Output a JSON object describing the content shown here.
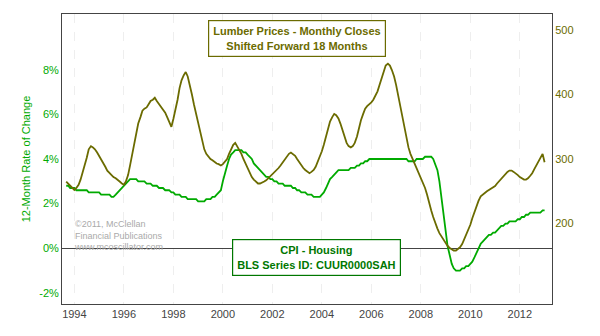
{
  "chart_data": {
    "type": "line",
    "title": "Lumber Prices - Monthly Closes",
    "subtitle": "Shifted Forward 18 Months",
    "ylabel": "12-Month Rate of Change",
    "x": [
      1993.67,
      1993.75,
      1993.83,
      1993.92,
      1994.0,
      1994.08,
      1994.17,
      1994.25,
      1994.33,
      1994.42,
      1994.5,
      1994.58,
      1994.67,
      1994.75,
      1994.83,
      1994.92,
      1995.0,
      1995.08,
      1995.17,
      1995.25,
      1995.33,
      1995.42,
      1995.5,
      1995.58,
      1995.67,
      1995.75,
      1995.83,
      1995.92,
      1996.0,
      1996.08,
      1996.17,
      1996.25,
      1996.33,
      1996.42,
      1996.5,
      1996.58,
      1996.67,
      1996.75,
      1996.83,
      1996.92,
      1997.0,
      1997.08,
      1997.17,
      1997.25,
      1997.33,
      1997.42,
      1997.5,
      1997.58,
      1997.67,
      1997.75,
      1997.83,
      1997.92,
      1998.0,
      1998.08,
      1998.17,
      1998.25,
      1998.33,
      1998.42,
      1998.5,
      1998.58,
      1998.67,
      1998.75,
      1998.83,
      1998.92,
      1999.0,
      1999.08,
      1999.17,
      1999.25,
      1999.33,
      1999.42,
      1999.5,
      1999.58,
      1999.67,
      1999.75,
      1999.83,
      1999.92,
      2000.0,
      2000.08,
      2000.17,
      2000.25,
      2000.33,
      2000.42,
      2000.5,
      2000.58,
      2000.67,
      2000.75,
      2000.83,
      2000.92,
      2001.0,
      2001.08,
      2001.17,
      2001.25,
      2001.33,
      2001.42,
      2001.5,
      2001.58,
      2001.67,
      2001.75,
      2001.83,
      2001.92,
      2002.0,
      2002.08,
      2002.17,
      2002.25,
      2002.33,
      2002.42,
      2002.5,
      2002.58,
      2002.67,
      2002.75,
      2002.83,
      2002.92,
      2003.0,
      2003.08,
      2003.17,
      2003.25,
      2003.33,
      2003.42,
      2003.5,
      2003.58,
      2003.67,
      2003.75,
      2003.83,
      2003.92,
      2004.0,
      2004.08,
      2004.17,
      2004.25,
      2004.33,
      2004.42,
      2004.5,
      2004.58,
      2004.67,
      2004.75,
      2004.83,
      2004.92,
      2005.0,
      2005.08,
      2005.17,
      2005.25,
      2005.33,
      2005.42,
      2005.5,
      2005.58,
      2005.67,
      2005.75,
      2005.83,
      2005.92,
      2006.0,
      2006.08,
      2006.17,
      2006.25,
      2006.33,
      2006.42,
      2006.5,
      2006.58,
      2006.67,
      2006.75,
      2006.83,
      2006.92,
      2007.0,
      2007.08,
      2007.17,
      2007.25,
      2007.33,
      2007.42,
      2007.5,
      2007.58,
      2007.67,
      2007.75,
      2007.83,
      2007.92,
      2008.0,
      2008.08,
      2008.17,
      2008.25,
      2008.33,
      2008.42,
      2008.5,
      2008.58,
      2008.67,
      2008.75,
      2008.83,
      2008.92,
      2009.0,
      2009.08,
      2009.17,
      2009.25,
      2009.33,
      2009.42,
      2009.5,
      2009.58,
      2009.67,
      2009.75,
      2009.83,
      2009.92,
      2010.0,
      2010.08,
      2010.17,
      2010.25,
      2010.33,
      2010.42,
      2010.5,
      2010.58,
      2010.67,
      2010.75,
      2010.83,
      2010.92,
      2011.0,
      2011.08,
      2011.17,
      2011.25,
      2011.33,
      2011.42,
      2011.5,
      2011.58,
      2011.67,
      2011.75,
      2011.83,
      2011.92,
      2012.0,
      2012.08,
      2012.17,
      2012.25,
      2012.33,
      2012.42,
      2012.5,
      2012.58,
      2012.67,
      2012.75,
      2012.83,
      2012.92,
      2013.0
    ],
    "series": [
      {
        "color": "#6b6b00",
        "axis": "y2",
        "values": [
          265,
          262,
          258,
          255,
          252,
          255,
          260,
          268,
          278,
          290,
          302,
          315,
          320,
          318,
          315,
          310,
          305,
          300,
          295,
          288,
          282,
          278,
          275,
          272,
          270,
          268,
          265,
          262,
          260,
          265,
          275,
          290,
          305,
          320,
          340,
          355,
          365,
          375,
          378,
          380,
          385,
          390,
          392,
          395,
          390,
          385,
          382,
          378,
          372,
          365,
          358,
          350,
          362,
          375,
          392,
          410,
          422,
          430,
          435,
          428,
          415,
          400,
          385,
          370,
          355,
          340,
          325,
          315,
          308,
          303,
          300,
          298,
          295,
          293,
          292,
          290,
          292,
          295,
          300,
          308,
          315,
          322,
          325,
          320,
          315,
          308,
          300,
          292,
          285,
          278,
          272,
          268,
          265,
          262,
          262,
          263,
          265,
          267,
          270,
          272,
          275,
          278,
          282,
          286,
          290,
          295,
          300,
          305,
          308,
          310,
          308,
          305,
          300,
          295,
          290,
          286,
          283,
          280,
          278,
          280,
          283,
          288,
          295,
          303,
          312,
          322,
          335,
          348,
          358,
          365,
          370,
          368,
          363,
          355,
          345,
          335,
          325,
          320,
          318,
          320,
          325,
          335,
          348,
          360,
          370,
          378,
          382,
          385,
          388,
          392,
          398,
          405,
          415,
          425,
          435,
          445,
          448,
          445,
          438,
          428,
          415,
          400,
          382,
          365,
          348,
          332,
          318,
          308,
          300,
          292,
          285,
          278,
          272,
          265,
          255,
          245,
          232,
          220,
          210,
          200,
          192,
          185,
          180,
          175,
          170,
          165,
          162,
          160,
          158,
          158,
          160,
          163,
          168,
          175,
          182,
          190,
          198,
          208,
          218,
          228,
          235,
          242,
          245,
          248,
          250,
          252,
          254,
          255,
          258,
          262,
          266,
          270,
          274,
          278,
          280,
          282,
          282,
          280,
          278,
          275,
          272,
          270,
          268,
          268,
          270,
          274,
          278,
          284,
          290,
          296,
          302,
          308,
          295
        ]
      },
      {
        "color": "#00aa00",
        "values": [
          0.028,
          0.028,
          0.027,
          0.027,
          0.027,
          0.026,
          0.026,
          0.026,
          0.026,
          0.026,
          0.026,
          0.025,
          0.025,
          0.025,
          0.025,
          0.025,
          0.025,
          0.024,
          0.024,
          0.024,
          0.024,
          0.024,
          0.023,
          0.023,
          0.024,
          0.025,
          0.026,
          0.027,
          0.028,
          0.029,
          0.03,
          0.031,
          0.031,
          0.031,
          0.031,
          0.03,
          0.03,
          0.03,
          0.03,
          0.029,
          0.029,
          0.029,
          0.028,
          0.028,
          0.028,
          0.027,
          0.027,
          0.027,
          0.026,
          0.026,
          0.026,
          0.025,
          0.025,
          0.024,
          0.024,
          0.024,
          0.023,
          0.023,
          0.023,
          0.022,
          0.022,
          0.022,
          0.022,
          0.022,
          0.021,
          0.021,
          0.021,
          0.021,
          0.022,
          0.022,
          0.022,
          0.023,
          0.023,
          0.024,
          0.025,
          0.026,
          0.03,
          0.034,
          0.037,
          0.04,
          0.042,
          0.043,
          0.044,
          0.044,
          0.044,
          0.044,
          0.043,
          0.043,
          0.042,
          0.041,
          0.04,
          0.038,
          0.037,
          0.036,
          0.035,
          0.034,
          0.033,
          0.032,
          0.032,
          0.031,
          0.031,
          0.03,
          0.03,
          0.029,
          0.029,
          0.029,
          0.028,
          0.028,
          0.028,
          0.028,
          0.027,
          0.027,
          0.026,
          0.026,
          0.025,
          0.025,
          0.025,
          0.024,
          0.024,
          0.024,
          0.023,
          0.023,
          0.023,
          0.023,
          0.024,
          0.025,
          0.027,
          0.029,
          0.031,
          0.032,
          0.033,
          0.034,
          0.035,
          0.035,
          0.035,
          0.035,
          0.035,
          0.035,
          0.036,
          0.036,
          0.036,
          0.037,
          0.037,
          0.038,
          0.038,
          0.039,
          0.039,
          0.04,
          0.04,
          0.04,
          0.04,
          0.04,
          0.04,
          0.04,
          0.04,
          0.04,
          0.04,
          0.04,
          0.04,
          0.04,
          0.04,
          0.04,
          0.04,
          0.04,
          0.04,
          0.04,
          0.039,
          0.039,
          0.039,
          0.039,
          0.04,
          0.04,
          0.04,
          0.04,
          0.041,
          0.041,
          0.041,
          0.041,
          0.04,
          0.038,
          0.035,
          0.03,
          0.022,
          0.015,
          0.008,
          0.001,
          -0.004,
          -0.007,
          -0.009,
          -0.01,
          -0.01,
          -0.01,
          -0.009,
          -0.009,
          -0.008,
          -0.008,
          -0.007,
          -0.006,
          -0.004,
          -0.002,
          0.0,
          0.002,
          0.003,
          0.004,
          0.005,
          0.006,
          0.006,
          0.007,
          0.007,
          0.008,
          0.009,
          0.01,
          0.01,
          0.011,
          0.011,
          0.012,
          0.012,
          0.012,
          0.012,
          0.013,
          0.013,
          0.014,
          0.014,
          0.015,
          0.015,
          0.016,
          0.016,
          0.016,
          0.016,
          0.016,
          0.016,
          0.017,
          0.017
        ]
      }
    ],
    "xlim": [
      1993.5,
      2013.3
    ],
    "xticks": [
      1994,
      1996,
      1998,
      2000,
      2002,
      2004,
      2006,
      2008,
      2010,
      2012
    ],
    "ylim": [
      -0.025,
      0.105
    ],
    "yticks": [
      {
        "value": -0.02,
        "label": "-2%"
      },
      {
        "value": 0.0,
        "label": "0%"
      },
      {
        "value": 0.02,
        "label": "2%"
      },
      {
        "value": 0.04,
        "label": "4%"
      },
      {
        "value": 0.06,
        "label": "6%"
      },
      {
        "value": 0.08,
        "label": "8%"
      }
    ],
    "y2lim": [
      75,
      525
    ],
    "y2ticks": [
      200,
      300,
      400,
      500
    ],
    "grid": "x",
    "annotations": [
      {
        "text": "CPI - Housing\nBLS Series ID: CUUR0000SAH",
        "color": "#007700"
      },
      {
        "text": "©2011, McClellan\nFinancial Publications\nwww.mcoscillator.com",
        "color": "#aaaaaa"
      }
    ]
  }
}
